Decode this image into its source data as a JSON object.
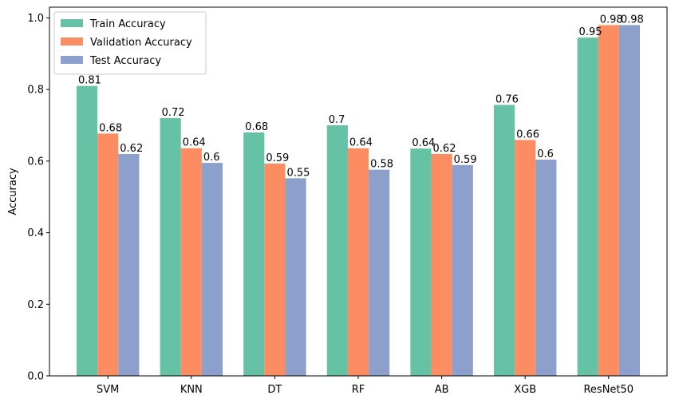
{
  "chart_data": {
    "type": "bar",
    "title": "",
    "xlabel": "",
    "ylabel": "Accuracy",
    "ylim": [
      0,
      1.03
    ],
    "yticks": [
      0.0,
      0.2,
      0.4,
      0.6,
      0.8,
      1.0
    ],
    "ytick_labels": [
      "0.0",
      "0.2",
      "0.4",
      "0.6",
      "0.8",
      "1.0"
    ],
    "grid": false,
    "legend_position": "top-left",
    "categories": [
      "SVM",
      "KNN",
      "DT",
      "RF",
      "AB",
      "XGB",
      "ResNet50"
    ],
    "series": [
      {
        "name": "Train Accuracy",
        "color": "#66c2a5",
        "values": [
          0.81,
          0.72,
          0.68,
          0.7,
          0.635,
          0.757,
          0.945
        ],
        "labels": [
          "0.81",
          "0.72",
          "0.68",
          "0.7",
          "0.64",
          "0.76",
          "0.95"
        ]
      },
      {
        "name": "Validation Accuracy",
        "color": "#fc8d62",
        "values": [
          0.677,
          0.636,
          0.593,
          0.636,
          0.62,
          0.659,
          0.98
        ],
        "labels": [
          "0.68",
          "0.64",
          "0.59",
          "0.64",
          "0.62",
          "0.66",
          "0.98"
        ]
      },
      {
        "name": "Test Accuracy",
        "color": "#8da0cb",
        "values": [
          0.62,
          0.595,
          0.552,
          0.576,
          0.589,
          0.604,
          0.98
        ],
        "labels": [
          "0.62",
          "0.6",
          "0.55",
          "0.58",
          "0.59",
          "0.6",
          "0.98"
        ]
      }
    ]
  }
}
